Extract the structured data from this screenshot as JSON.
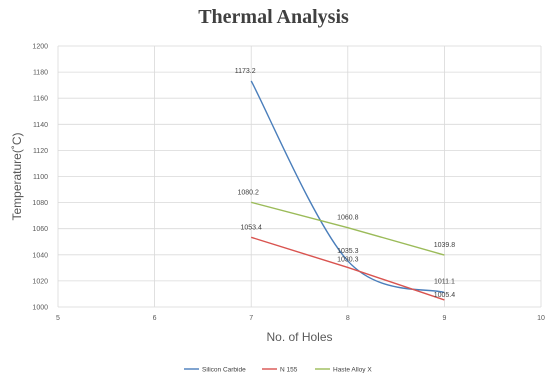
{
  "chart_data": {
    "type": "line",
    "title": "Thermal Analysis",
    "xlabel": "No. of  Holes",
    "ylabel": "Temperature(˚C)",
    "xlim": [
      5,
      10
    ],
    "ylim": [
      1000,
      1200
    ],
    "xticks": [
      5,
      6,
      7,
      8,
      9,
      10
    ],
    "yticks": [
      1000,
      1020,
      1040,
      1060,
      1080,
      1100,
      1120,
      1140,
      1160,
      1180,
      1200
    ],
    "grid": true,
    "legend_position": "bottom",
    "series": [
      {
        "name": "Silicon Carbide",
        "color": "#4a7ebb",
        "smooth": true,
        "x": [
          7,
          8,
          9
        ],
        "y": [
          1173.2,
          1035.3,
          1011.1
        ],
        "labels": [
          "1173.2",
          "1035.3",
          "1011.1"
        ]
      },
      {
        "name": "N 155",
        "color": "#d9534f",
        "smooth": false,
        "x": [
          7,
          8,
          9
        ],
        "y": [
          1053.4,
          1030.3,
          1005.4
        ],
        "labels": [
          "1053.4",
          "1030.3",
          "1005.4"
        ]
      },
      {
        "name": "Haste Alloy X",
        "color": "#9bbb59",
        "smooth": false,
        "x": [
          7,
          8,
          9
        ],
        "y": [
          1080.2,
          1060.8,
          1039.8
        ],
        "labels": [
          "1080.2",
          "1060.8",
          "1039.8"
        ]
      }
    ]
  }
}
